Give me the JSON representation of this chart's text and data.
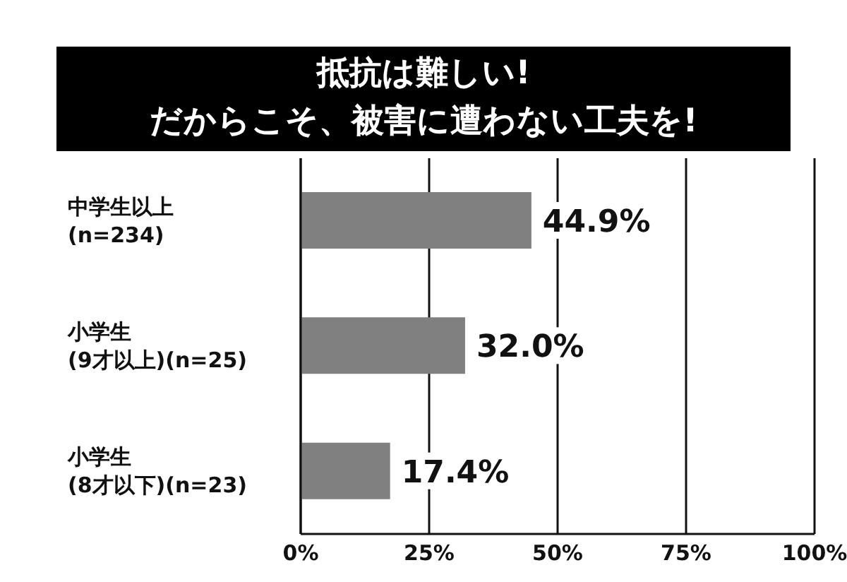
{
  "chart_data": {
    "type": "bar",
    "orientation": "horizontal",
    "title": "抵抗は難しい!\nだからこそ、被害に遭わない工夫を!",
    "categories": [
      "中学生以上\n(n=234)",
      "小学生\n(9才以上)(n=25)",
      "小学生\n(8才以下)(n=23)"
    ],
    "values": [
      44.9,
      32.0,
      17.4
    ],
    "value_labels": [
      "44.9%",
      "32.0%",
      "17.4%"
    ],
    "color": "#808080",
    "xlim": [
      0,
      100
    ],
    "xticks": [
      {
        "value": 0,
        "label": "0%"
      },
      {
        "value": 25,
        "label": "25%"
      },
      {
        "value": 50,
        "label": "50%"
      },
      {
        "value": 75,
        "label": "75%"
      },
      {
        "value": 100,
        "label": "100%"
      }
    ],
    "grid": "x",
    "legend": false
  }
}
